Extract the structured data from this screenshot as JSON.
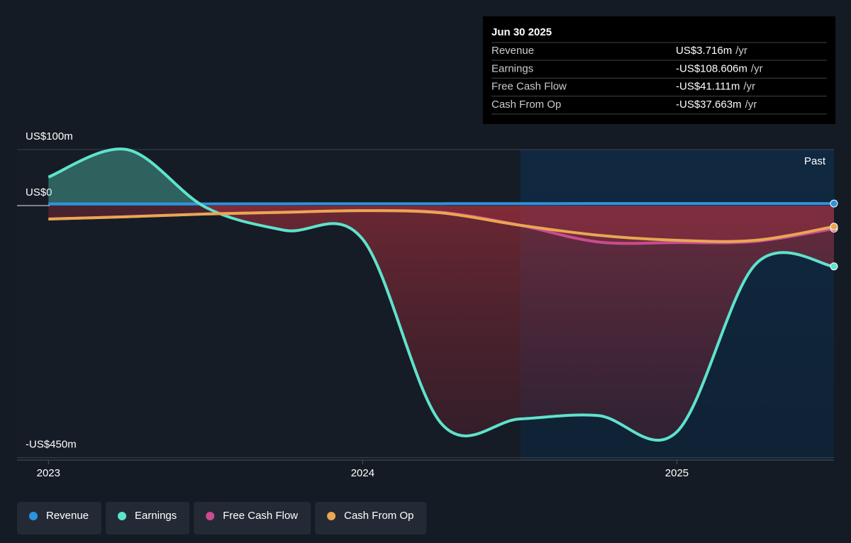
{
  "chart_data": {
    "type": "line",
    "x": [
      2023,
      2023.25,
      2023.5,
      2023.75,
      2024,
      2024.25,
      2024.5,
      2024.75,
      2025,
      2025.25,
      2025.5
    ],
    "xlim": [
      2022.9,
      2025.5
    ],
    "xticks": [
      2023,
      2024,
      2025
    ],
    "ylim": [
      -450,
      100
    ],
    "yticks": [
      {
        "value": 100,
        "label": "US$100m"
      },
      {
        "value": 0,
        "label": "US$0"
      },
      {
        "value": -450,
        "label": "-US$450m"
      }
    ],
    "series": [
      {
        "name": "Revenue",
        "color": "#2b94e0",
        "values": [
          3,
          3,
          3,
          3.2,
          3.3,
          3.4,
          3.5,
          3.6,
          3.6,
          3.7,
          3.716
        ]
      },
      {
        "name": "Earnings",
        "color": "#5ee3cc",
        "values": [
          51,
          100,
          -3,
          -44,
          -60,
          -389,
          -381,
          -375,
          -404,
          -105,
          -108.606
        ]
      },
      {
        "name": "Free Cash Flow",
        "color": "#c94c90",
        "values": [
          -24,
          -20,
          -15,
          -12,
          -9,
          -12,
          -35,
          -65,
          -66,
          -64,
          -41.111
        ]
      },
      {
        "name": "Cash From Op",
        "color": "#e9a752",
        "values": [
          -24,
          -20,
          -15,
          -12,
          -9,
          -13,
          -35,
          -53,
          -62,
          -62,
          -37.663
        ]
      }
    ],
    "annotation": "Past"
  },
  "tooltip": {
    "title": "Jun 30 2025",
    "rows": [
      {
        "label": "Revenue",
        "value": "US$3.716m",
        "unit": "/yr"
      },
      {
        "label": "Earnings",
        "value": "-US$108.606m",
        "unit": "/yr"
      },
      {
        "label": "Free Cash Flow",
        "value": "-US$41.111m",
        "unit": "/yr"
      },
      {
        "label": "Cash From Op",
        "value": "-US$37.663m",
        "unit": "/yr"
      }
    ]
  }
}
